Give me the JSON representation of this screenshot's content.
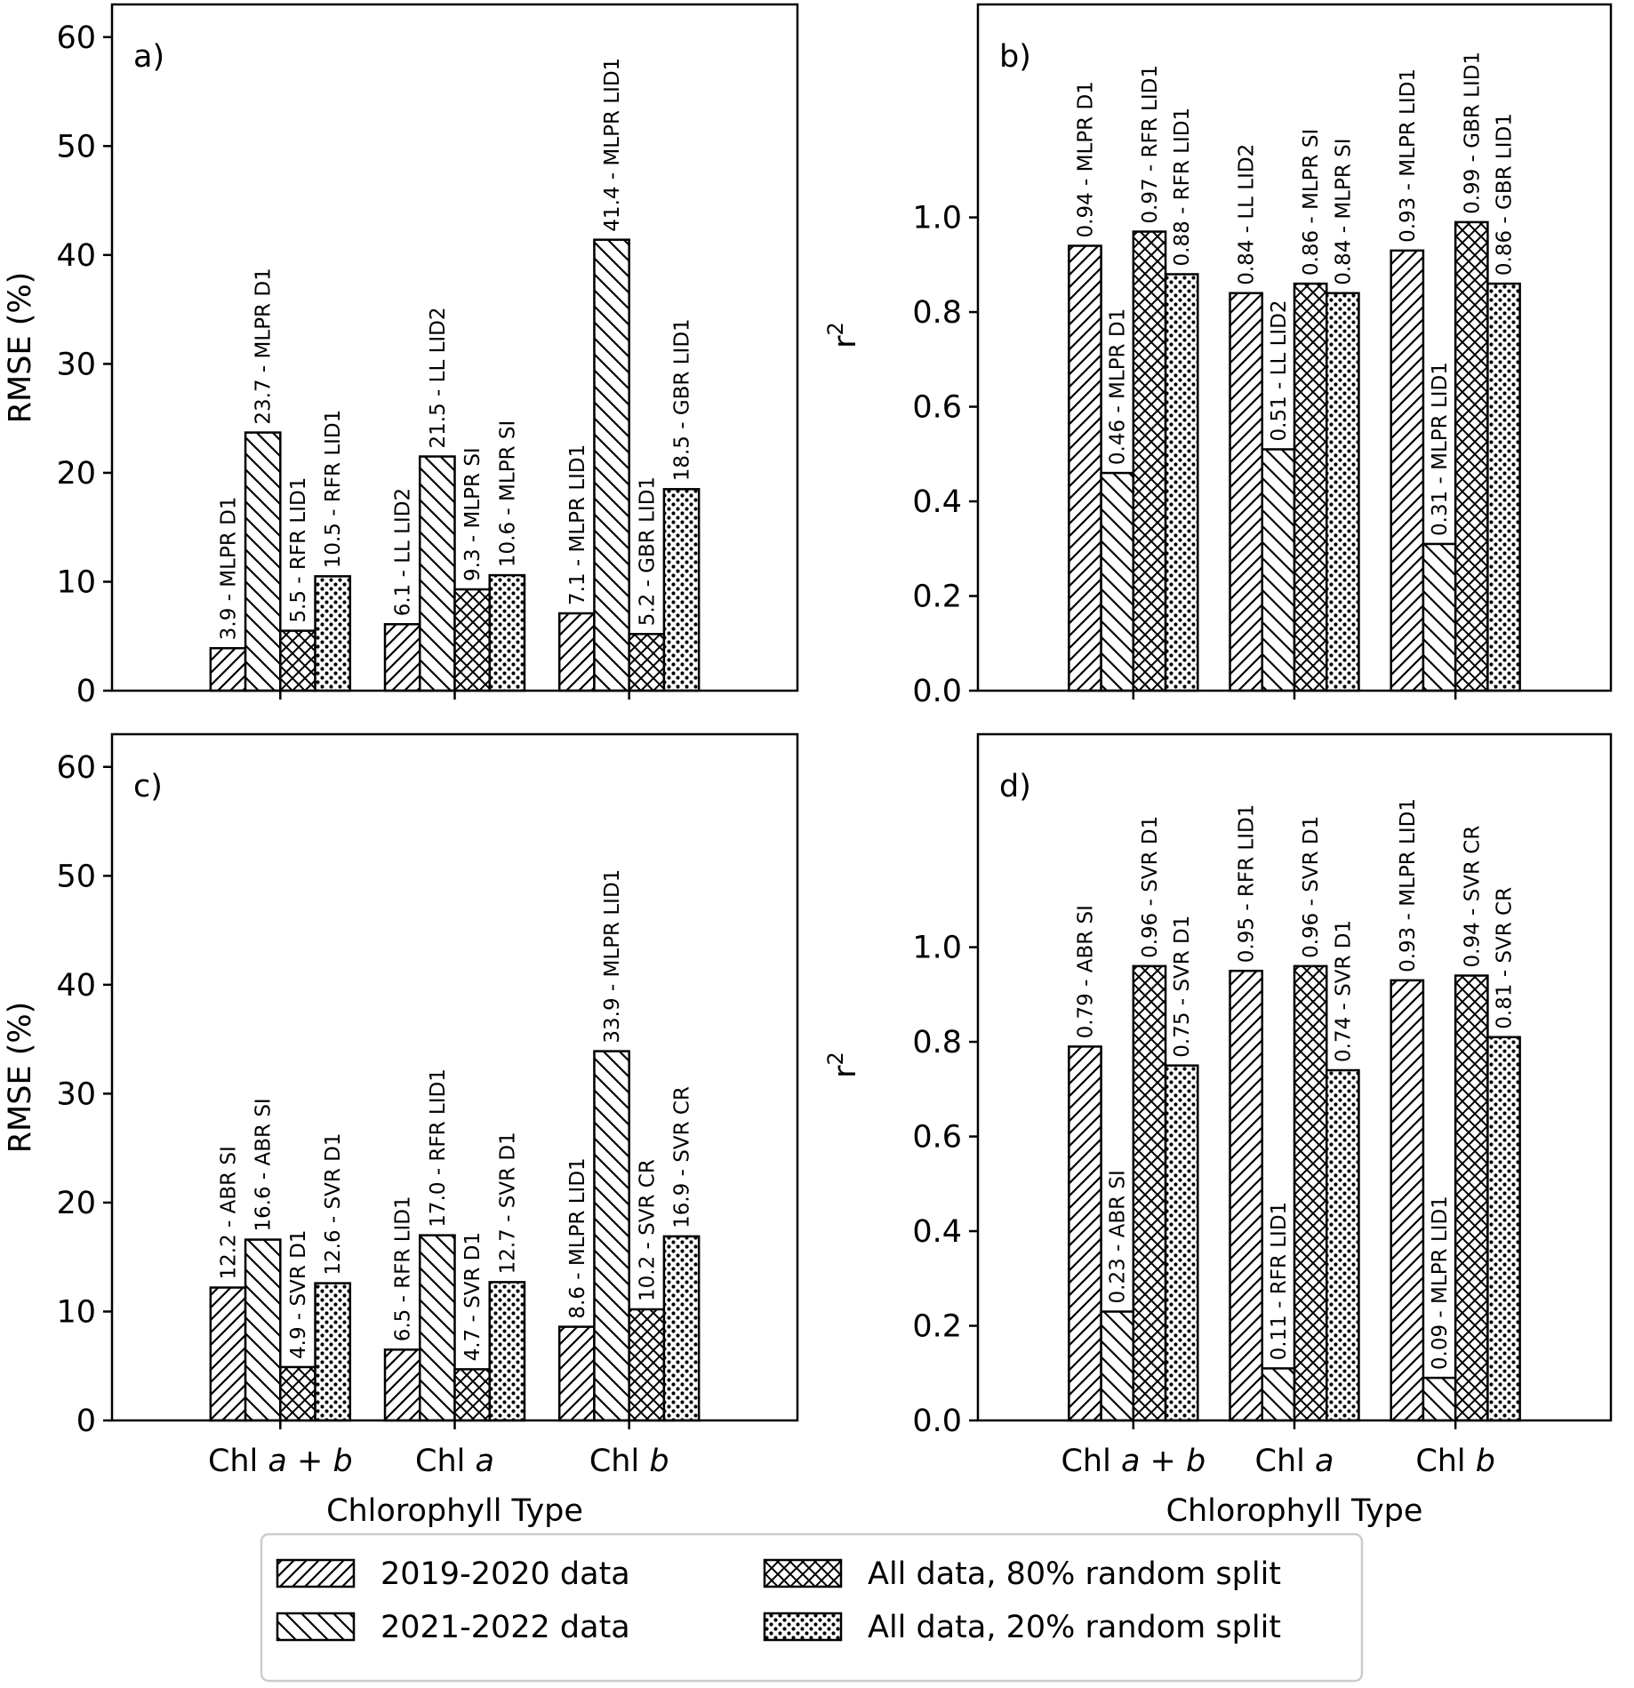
{
  "figure": {
    "categories": [
      "Chl a + b",
      "Chl a",
      "Chl b"
    ],
    "category_parts": [
      [
        {
          "t": "Chl ",
          "i": false
        },
        {
          "t": "a",
          "i": true
        },
        {
          "t": " + ",
          "i": false
        },
        {
          "t": "b",
          "i": true
        }
      ],
      [
        {
          "t": "Chl ",
          "i": false
        },
        {
          "t": "a",
          "i": true
        }
      ],
      [
        {
          "t": "Chl ",
          "i": false
        },
        {
          "t": "b",
          "i": true
        }
      ]
    ],
    "xlabel": "Chlorophyll Type",
    "legend": [
      "2019-2020 data",
      "2021-2022 data",
      "All data, 80% random split",
      "All data, 20% random split"
    ],
    "legend_patterns": [
      "diag-forward",
      "diag-back",
      "crosshatch",
      "dots"
    ],
    "colors": {
      "stroke": "#000000",
      "background": "#ffffff",
      "legend_border": "#cccccc"
    }
  },
  "chart_data": [
    {
      "panel_label": "a)",
      "type": "bar",
      "ylabel": "RMSE (%)",
      "ylabel_sup": "",
      "ylim": [
        0,
        63
      ],
      "yticks": [
        "0",
        "10",
        "20",
        "30",
        "40",
        "50",
        "60"
      ],
      "ytick_values": [
        0,
        10,
        20,
        30,
        40,
        50,
        60
      ],
      "series": [
        {
          "name": "2019-2020 data",
          "values": [
            3.9,
            6.1,
            7.1
          ],
          "labels": [
            "3.9 - MLPR D1",
            "6.1 - LL LID2",
            "7.1 - MLPR LID1"
          ]
        },
        {
          "name": "2021-2022 data",
          "values": [
            23.7,
            21.5,
            41.4
          ],
          "labels": [
            "23.7 - MLPR D1",
            "21.5 - LL LID2",
            "41.4 - MLPR LID1"
          ]
        },
        {
          "name": "All data, 80% random split",
          "values": [
            5.5,
            9.3,
            5.2
          ],
          "labels": [
            "5.5 - RFR LID1",
            "9.3 - MLPR SI",
            "5.2 - GBR LID1"
          ]
        },
        {
          "name": "All data, 20% random split",
          "values": [
            10.5,
            10.6,
            18.5
          ],
          "labels": [
            "10.5 - RFR LID1",
            "10.6 - MLPR SI",
            "18.5 - GBR LID1"
          ]
        }
      ]
    },
    {
      "panel_label": "b)",
      "type": "bar",
      "ylabel": "r",
      "ylabel_sup": "2",
      "ylim": [
        0,
        1.45
      ],
      "yticks": [
        "0.0",
        "0.2",
        "0.4",
        "0.6",
        "0.8",
        "1.0"
      ],
      "ytick_values": [
        0,
        0.2,
        0.4,
        0.6,
        0.8,
        1.0
      ],
      "series": [
        {
          "name": "2019-2020 data",
          "values": [
            0.94,
            0.84,
            0.93
          ],
          "labels": [
            "0.94 - MLPR D1",
            "0.84 - LL LID2",
            "0.93 - MLPR LID1"
          ]
        },
        {
          "name": "2021-2022 data",
          "values": [
            0.46,
            0.51,
            0.31
          ],
          "labels": [
            "0.46 - MLPR D1",
            "0.51 - LL LID2",
            "0.31 - MLPR LID1"
          ]
        },
        {
          "name": "All data, 80% random split",
          "values": [
            0.97,
            0.86,
            0.99
          ],
          "labels": [
            "0.97 - RFR LID1",
            "0.86 - MLPR SI",
            "0.99 - GBR LID1"
          ]
        },
        {
          "name": "All data, 20% random split",
          "values": [
            0.88,
            0.84,
            0.86
          ],
          "labels": [
            "0.88 - RFR LID1",
            "0.84 - MLPR SI",
            "0.86 - GBR LID1"
          ]
        }
      ]
    },
    {
      "panel_label": "c)",
      "type": "bar",
      "ylabel": "RMSE (%)",
      "ylabel_sup": "",
      "ylim": [
        0,
        63
      ],
      "yticks": [
        "0",
        "10",
        "20",
        "30",
        "40",
        "50",
        "60"
      ],
      "ytick_values": [
        0,
        10,
        20,
        30,
        40,
        50,
        60
      ],
      "series": [
        {
          "name": "2019-2020 data",
          "values": [
            12.2,
            6.5,
            8.6
          ],
          "labels": [
            "12.2 - ABR SI",
            "6.5 - RFR LID1",
            "8.6 - MLPR LID1"
          ]
        },
        {
          "name": "2021-2022 data",
          "values": [
            16.6,
            17.0,
            33.9
          ],
          "labels": [
            "16.6 - ABR SI",
            "17.0 - RFR LID1",
            "33.9 - MLPR LID1"
          ]
        },
        {
          "name": "All data, 80% random split",
          "values": [
            4.9,
            4.7,
            10.2
          ],
          "labels": [
            "4.9 - SVR D1",
            "4.7 - SVR D1",
            "10.2 - SVR CR"
          ]
        },
        {
          "name": "All data, 20% random split",
          "values": [
            12.6,
            12.7,
            16.9
          ],
          "labels": [
            "12.6 - SVR D1",
            "12.7 - SVR D1",
            "16.9 - SVR CR"
          ]
        }
      ]
    },
    {
      "panel_label": "d)",
      "type": "bar",
      "ylabel": "r",
      "ylabel_sup": "2",
      "ylim": [
        0,
        1.45
      ],
      "yticks": [
        "0.0",
        "0.2",
        "0.4",
        "0.6",
        "0.8",
        "1.0"
      ],
      "ytick_values": [
        0,
        0.2,
        0.4,
        0.6,
        0.8,
        1.0
      ],
      "series": [
        {
          "name": "2019-2020 data",
          "values": [
            0.79,
            0.95,
            0.93
          ],
          "labels": [
            "0.79 - ABR SI",
            "0.95 - RFR LID1",
            "0.93 - MLPR LID1"
          ]
        },
        {
          "name": "2021-2022 data",
          "values": [
            0.23,
            0.11,
            0.09
          ],
          "labels": [
            "0.23 - ABR SI",
            "0.11 - RFR LID1",
            "0.09 - MLPR LID1"
          ]
        },
        {
          "name": "All data, 80% random split",
          "values": [
            0.96,
            0.96,
            0.94
          ],
          "labels": [
            "0.96 - SVR D1",
            "0.96 - SVR D1",
            "0.94 - SVR CR"
          ]
        },
        {
          "name": "All data, 20% random split",
          "values": [
            0.75,
            0.74,
            0.81
          ],
          "labels": [
            "0.75 - SVR D1",
            "0.74 - SVR D1",
            "0.81 - SVR CR"
          ]
        }
      ]
    }
  ]
}
